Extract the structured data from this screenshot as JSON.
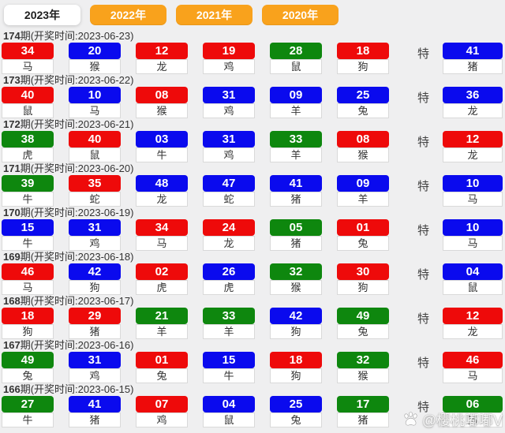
{
  "tabs": [
    {
      "label": "2023年",
      "active": true
    },
    {
      "label": "2022年",
      "active": false
    },
    {
      "label": "2021年",
      "active": false
    },
    {
      "label": "2020年",
      "active": false
    }
  ],
  "header_prefix": "期(开奖时间:",
  "header_suffix": ")",
  "special_marker": "特",
  "watermark": {
    "icon": "paw-icon",
    "handle": "@樱桃嘟嘟V"
  },
  "colors": {
    "red": "#ee0a0a",
    "blue": "#0a0aee",
    "green": "#0e870e",
    "tab_orange": "#f9a21c",
    "page_bg": "#efeff0"
  },
  "draws": [
    {
      "period": "174",
      "date": "2023-06-23",
      "numbers": [
        {
          "value": "34",
          "color": "red",
          "zodiac": "马"
        },
        {
          "value": "20",
          "color": "blue",
          "zodiac": "猴"
        },
        {
          "value": "12",
          "color": "red",
          "zodiac": "龙"
        },
        {
          "value": "19",
          "color": "red",
          "zodiac": "鸡"
        },
        {
          "value": "28",
          "color": "green",
          "zodiac": "鼠"
        },
        {
          "value": "18",
          "color": "red",
          "zodiac": "狗"
        }
      ],
      "special": {
        "value": "41",
        "color": "blue",
        "zodiac": "猪"
      }
    },
    {
      "period": "173",
      "date": "2023-06-22",
      "numbers": [
        {
          "value": "40",
          "color": "red",
          "zodiac": "鼠"
        },
        {
          "value": "10",
          "color": "blue",
          "zodiac": "马"
        },
        {
          "value": "08",
          "color": "red",
          "zodiac": "猴"
        },
        {
          "value": "31",
          "color": "blue",
          "zodiac": "鸡"
        },
        {
          "value": "09",
          "color": "blue",
          "zodiac": "羊"
        },
        {
          "value": "25",
          "color": "blue",
          "zodiac": "兔"
        }
      ],
      "special": {
        "value": "36",
        "color": "blue",
        "zodiac": "龙"
      }
    },
    {
      "period": "172",
      "date": "2023-06-21",
      "numbers": [
        {
          "value": "38",
          "color": "green",
          "zodiac": "虎"
        },
        {
          "value": "40",
          "color": "red",
          "zodiac": "鼠"
        },
        {
          "value": "03",
          "color": "blue",
          "zodiac": "牛"
        },
        {
          "value": "31",
          "color": "blue",
          "zodiac": "鸡"
        },
        {
          "value": "33",
          "color": "green",
          "zodiac": "羊"
        },
        {
          "value": "08",
          "color": "red",
          "zodiac": "猴"
        }
      ],
      "special": {
        "value": "12",
        "color": "red",
        "zodiac": "龙"
      }
    },
    {
      "period": "171",
      "date": "2023-06-20",
      "numbers": [
        {
          "value": "39",
          "color": "green",
          "zodiac": "牛"
        },
        {
          "value": "35",
          "color": "red",
          "zodiac": "蛇"
        },
        {
          "value": "48",
          "color": "blue",
          "zodiac": "龙"
        },
        {
          "value": "47",
          "color": "blue",
          "zodiac": "蛇"
        },
        {
          "value": "41",
          "color": "blue",
          "zodiac": "猪"
        },
        {
          "value": "09",
          "color": "blue",
          "zodiac": "羊"
        }
      ],
      "special": {
        "value": "10",
        "color": "blue",
        "zodiac": "马"
      }
    },
    {
      "period": "170",
      "date": "2023-06-19",
      "numbers": [
        {
          "value": "15",
          "color": "blue",
          "zodiac": "牛"
        },
        {
          "value": "31",
          "color": "blue",
          "zodiac": "鸡"
        },
        {
          "value": "34",
          "color": "red",
          "zodiac": "马"
        },
        {
          "value": "24",
          "color": "red",
          "zodiac": "龙"
        },
        {
          "value": "05",
          "color": "green",
          "zodiac": "猪"
        },
        {
          "value": "01",
          "color": "red",
          "zodiac": "兔"
        }
      ],
      "special": {
        "value": "10",
        "color": "blue",
        "zodiac": "马"
      }
    },
    {
      "period": "169",
      "date": "2023-06-18",
      "numbers": [
        {
          "value": "46",
          "color": "red",
          "zodiac": "马"
        },
        {
          "value": "42",
          "color": "blue",
          "zodiac": "狗"
        },
        {
          "value": "02",
          "color": "red",
          "zodiac": "虎"
        },
        {
          "value": "26",
          "color": "blue",
          "zodiac": "虎"
        },
        {
          "value": "32",
          "color": "green",
          "zodiac": "猴"
        },
        {
          "value": "30",
          "color": "red",
          "zodiac": "狗"
        }
      ],
      "special": {
        "value": "04",
        "color": "blue",
        "zodiac": "鼠"
      }
    },
    {
      "period": "168",
      "date": "2023-06-17",
      "numbers": [
        {
          "value": "18",
          "color": "red",
          "zodiac": "狗"
        },
        {
          "value": "29",
          "color": "red",
          "zodiac": "猪"
        },
        {
          "value": "21",
          "color": "green",
          "zodiac": "羊"
        },
        {
          "value": "33",
          "color": "green",
          "zodiac": "羊"
        },
        {
          "value": "42",
          "color": "blue",
          "zodiac": "狗"
        },
        {
          "value": "49",
          "color": "green",
          "zodiac": "兔"
        }
      ],
      "special": {
        "value": "12",
        "color": "red",
        "zodiac": "龙"
      }
    },
    {
      "period": "167",
      "date": "2023-06-16",
      "numbers": [
        {
          "value": "49",
          "color": "green",
          "zodiac": "兔"
        },
        {
          "value": "31",
          "color": "blue",
          "zodiac": "鸡"
        },
        {
          "value": "01",
          "color": "red",
          "zodiac": "兔"
        },
        {
          "value": "15",
          "color": "blue",
          "zodiac": "牛"
        },
        {
          "value": "18",
          "color": "red",
          "zodiac": "狗"
        },
        {
          "value": "32",
          "color": "green",
          "zodiac": "猴"
        }
      ],
      "special": {
        "value": "46",
        "color": "red",
        "zodiac": "马"
      }
    },
    {
      "period": "166",
      "date": "2023-06-15",
      "numbers": [
        {
          "value": "27",
          "color": "green",
          "zodiac": "牛"
        },
        {
          "value": "41",
          "color": "blue",
          "zodiac": "猪"
        },
        {
          "value": "07",
          "color": "red",
          "zodiac": "鸡"
        },
        {
          "value": "04",
          "color": "blue",
          "zodiac": "鼠"
        },
        {
          "value": "25",
          "color": "blue",
          "zodiac": "兔"
        },
        {
          "value": "17",
          "color": "green",
          "zodiac": "猪"
        }
      ],
      "special": {
        "value": "06",
        "color": "green",
        "zodiac": "狗"
      }
    }
  ]
}
